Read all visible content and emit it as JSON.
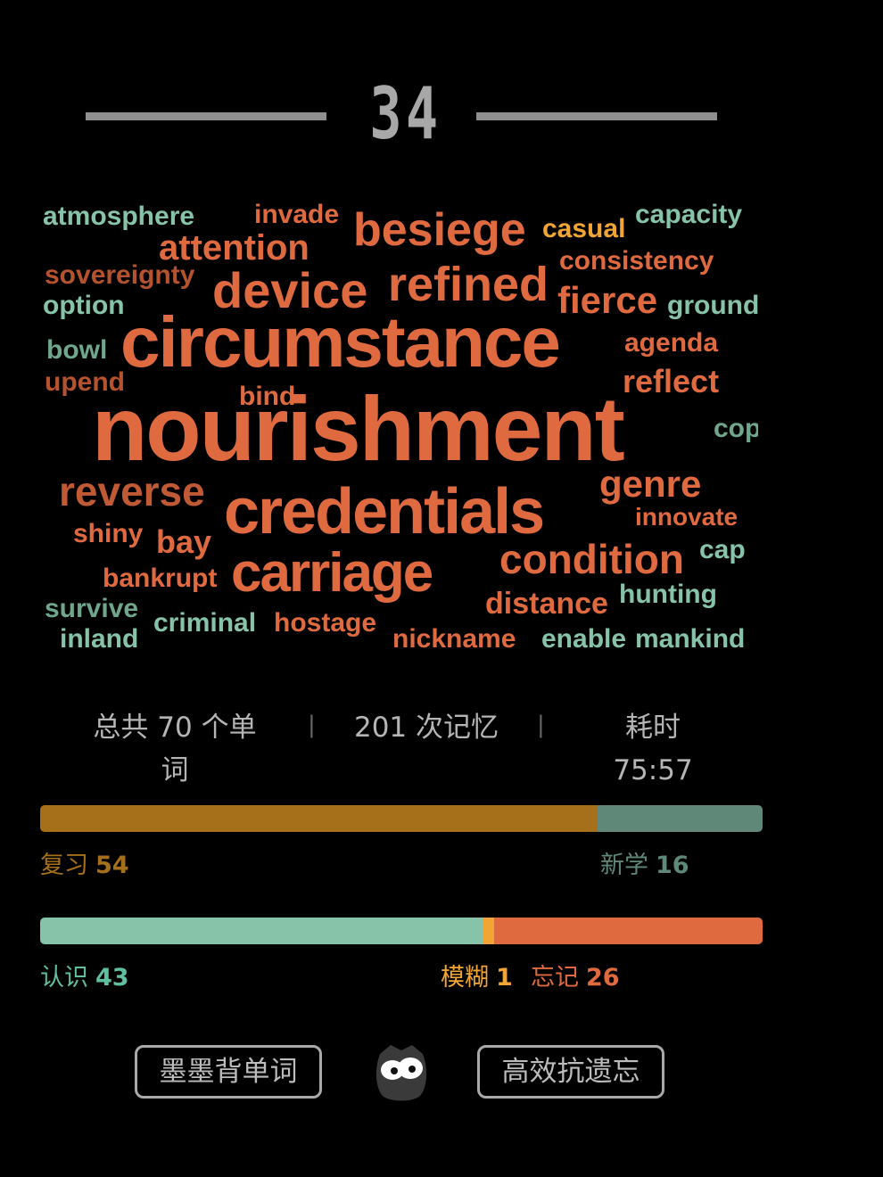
{
  "header": {
    "day_number": "34"
  },
  "word_cloud": [
    {
      "text": "atmosphere",
      "color": "#86c3a8"
    },
    {
      "text": "invade",
      "color": "#e06a3f"
    },
    {
      "text": "besiege",
      "color": "#e06a3f"
    },
    {
      "text": "casual",
      "color": "#f0a535"
    },
    {
      "text": "capacity",
      "color": "#86c3a8"
    },
    {
      "text": "attention",
      "color": "#e06a3f"
    },
    {
      "text": "consistency",
      "color": "#e06a3f"
    },
    {
      "text": "sovereignty",
      "color": "#b4532e"
    },
    {
      "text": "device",
      "color": "#e06a3f"
    },
    {
      "text": "refined",
      "color": "#e06a3f"
    },
    {
      "text": "fierce",
      "color": "#e06a3f"
    },
    {
      "text": "option",
      "color": "#86c3a8"
    },
    {
      "text": "ground",
      "color": "#86c3a8"
    },
    {
      "text": "circumstance",
      "color": "#e06a3f"
    },
    {
      "text": "agenda",
      "color": "#e06a3f"
    },
    {
      "text": "bowl",
      "color": "#6fa68c"
    },
    {
      "text": "upend",
      "color": "#b4532e"
    },
    {
      "text": "bind",
      "color": "#e06a3f"
    },
    {
      "text": "reflect",
      "color": "#e06a3f"
    },
    {
      "text": "nourishment",
      "color": "#e06a3f"
    },
    {
      "text": "cop",
      "color": "#6fa68c"
    },
    {
      "text": "reverse",
      "color": "#c05a35"
    },
    {
      "text": "genre",
      "color": "#e06a3f"
    },
    {
      "text": "credentials",
      "color": "#e06a3f"
    },
    {
      "text": "innovate",
      "color": "#e06a3f"
    },
    {
      "text": "shiny",
      "color": "#e06a3f"
    },
    {
      "text": "bay",
      "color": "#e06a3f"
    },
    {
      "text": "cap",
      "color": "#86c3a8"
    },
    {
      "text": "bankrupt",
      "color": "#e06a3f"
    },
    {
      "text": "carriage",
      "color": "#e06a3f"
    },
    {
      "text": "condition",
      "color": "#e06a3f"
    },
    {
      "text": "hunting",
      "color": "#86c3a8"
    },
    {
      "text": "distance",
      "color": "#e06a3f"
    },
    {
      "text": "survive",
      "color": "#6fa68c"
    },
    {
      "text": "criminal",
      "color": "#86c3a8"
    },
    {
      "text": "hostage",
      "color": "#e06a3f"
    },
    {
      "text": "inland",
      "color": "#86c3a8"
    },
    {
      "text": "nickname",
      "color": "#e06a3f"
    },
    {
      "text": "enable",
      "color": "#86c3a8"
    },
    {
      "text": "mankind",
      "color": "#86c3a8"
    }
  ],
  "stats": {
    "total_words": "总共 70 个单词",
    "memory_count": "201 次记忆",
    "time_label": "耗时",
    "time_value": "75:57",
    "separator": "|"
  },
  "review_bar": {
    "review_label": "复习",
    "review_count": "54",
    "new_label": "新学",
    "new_count": "16",
    "review_fraction": 0.771,
    "colors": {
      "review": "#a6701b",
      "new": "#5f8878"
    }
  },
  "memory_bar": {
    "known_label": "认识",
    "known_count": "43",
    "fuzzy_label": "模糊",
    "fuzzy_count": "1",
    "forgot_label": "忘记",
    "forgot_count": "26",
    "fractions": {
      "known": 0.614,
      "fuzzy": 0.014,
      "forgot": 0.372
    },
    "colors": {
      "known": "#86c3a8",
      "fuzzy": "#f0a535",
      "forgot": "#e06a3f"
    }
  },
  "footer": {
    "app_button": "墨墨背单词",
    "slogan_button": "高效抗遗忘",
    "logo_icon": "owl-icon"
  }
}
